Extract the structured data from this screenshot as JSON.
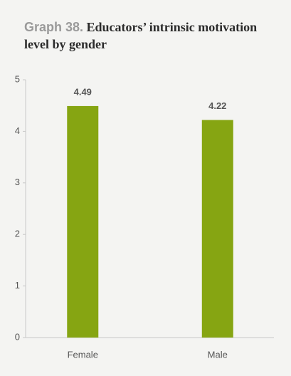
{
  "chart_data": {
    "type": "bar",
    "title_label": "Graph 38.",
    "title": "Educators’ intrinsic motivation level by gender",
    "categories": [
      "Female",
      "Male"
    ],
    "values": [
      4.49,
      4.22
    ],
    "color": "#86a512",
    "ylim": [
      0,
      5
    ],
    "yticks": [
      0,
      1,
      2,
      3,
      4,
      5
    ],
    "grid": false
  }
}
